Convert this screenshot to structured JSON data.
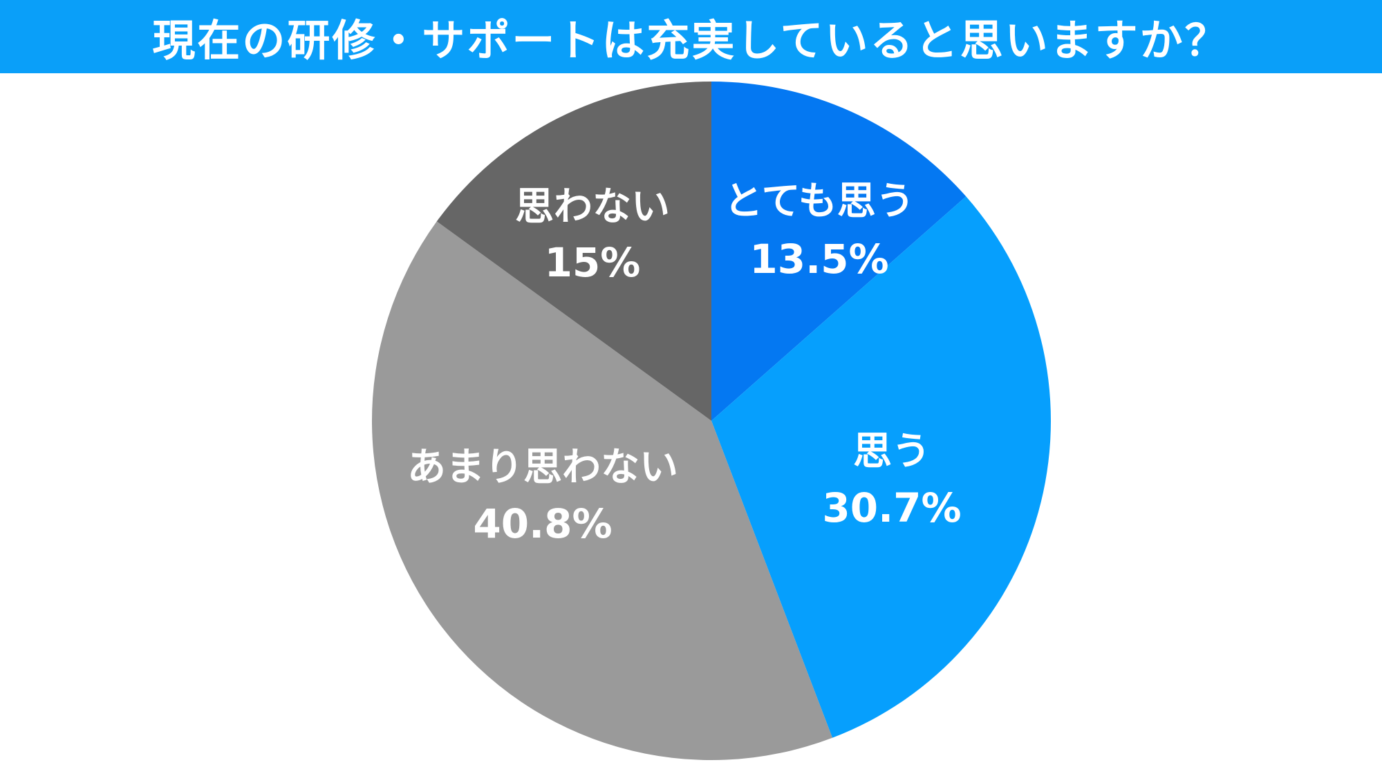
{
  "chart_data": {
    "type": "pie",
    "title": "現在の研修・サポートは充実していると思いますか？",
    "title_bar_color": "#0a9ff9",
    "start_angle_deg": 0,
    "direction": "clockwise",
    "legend": "none",
    "slices": [
      {
        "label": "とても思う",
        "value": 13.5,
        "value_label": "13.5%",
        "color": "#0478f2"
      },
      {
        "label": "思う",
        "value": 30.7,
        "value_label": "30.7%",
        "color": "#069ffd"
      },
      {
        "label": "あまり思わない",
        "value": 40.8,
        "value_label": "40.8%",
        "color": "#9a9a9a"
      },
      {
        "label": "思わない",
        "value": 15,
        "value_label": "15%",
        "color": "#666666"
      }
    ]
  }
}
